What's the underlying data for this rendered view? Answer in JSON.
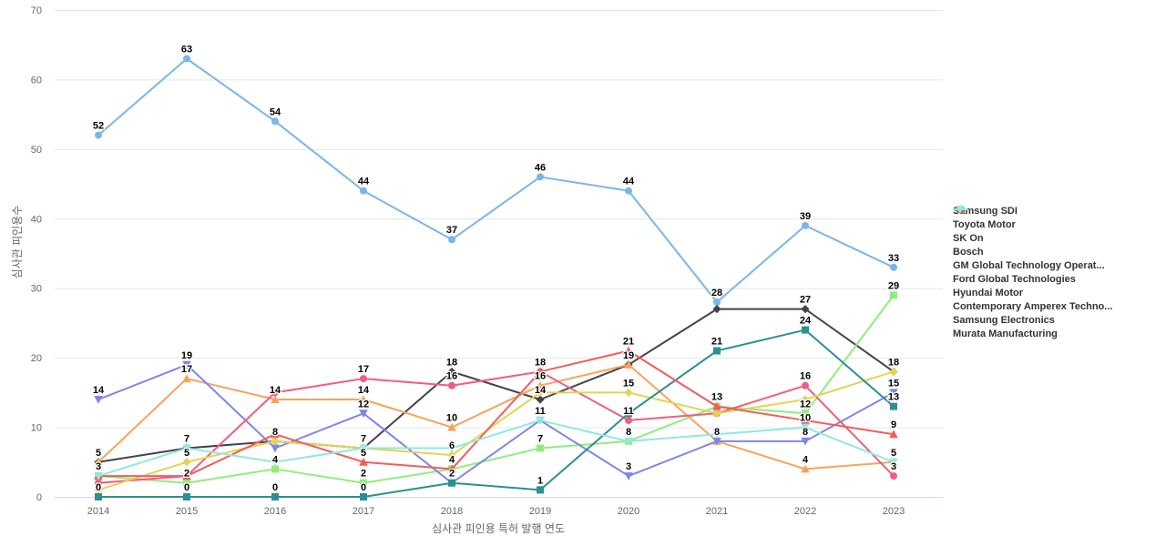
{
  "chart": {
    "theme": {
      "background": "#ffffff",
      "grid_color": "#e6e6e6",
      "axis_line_color": "#ccd6eb",
      "tick_label_color": "#666666",
      "axis_title_color": "#666666",
      "legend_text_color": "#333333",
      "data_label_color": "#000000"
    }
  },
  "chart_data": {
    "type": "line",
    "title": "",
    "xlabel": "심사관 피인용 특허 발행 연도",
    "ylabel": "심사관 피인용수",
    "x": [
      2014,
      2015,
      2016,
      2017,
      2018,
      2019,
      2020,
      2021,
      2022,
      2023
    ],
    "ylim": [
      0,
      70
    ],
    "y_ticks": [
      0,
      10,
      20,
      30,
      40,
      50,
      60,
      70
    ],
    "grid": true,
    "legend_position": "right",
    "series": [
      {
        "name": "Samsung SDI",
        "color": "#7cb5ec",
        "symbol": "circle",
        "values": [
          52,
          63,
          54,
          44,
          37,
          46,
          44,
          28,
          39,
          33
        ],
        "labels_shown": [
          0,
          1,
          2,
          3,
          4,
          5,
          6,
          7,
          8,
          9
        ]
      },
      {
        "name": "Toyota Motor",
        "color": "#434348",
        "symbol": "diamond",
        "values": [
          5,
          7,
          8,
          7,
          18,
          14,
          19,
          27,
          27,
          18
        ],
        "labels_shown": [
          0,
          1,
          3,
          4,
          5,
          8
        ]
      },
      {
        "name": "SK On",
        "color": "#90ed7d",
        "symbol": "square",
        "values": [
          3,
          2,
          4,
          2,
          4,
          7,
          8,
          13,
          12,
          29
        ],
        "labels_shown": [
          0,
          1,
          2,
          3,
          4,
          5,
          6,
          7,
          8,
          9
        ]
      },
      {
        "name": "Bosch",
        "color": "#f7a35c",
        "symbol": "triangle",
        "values": [
          5,
          17,
          14,
          14,
          10,
          16,
          19,
          8,
          4,
          5
        ],
        "labels_shown": [
          1,
          2,
          3,
          4,
          5,
          6,
          8
        ]
      },
      {
        "name": "GM Global Technology Operat...",
        "color": "#8085e9",
        "symbol": "triangle-down",
        "values": [
          14,
          19,
          7,
          12,
          2,
          11,
          3,
          8,
          8,
          15
        ],
        "labels_shown": [
          0,
          1,
          3,
          4,
          6,
          7,
          8,
          9
        ]
      },
      {
        "name": "Ford Global Technologies",
        "color": "#f15c80",
        "symbol": "circle",
        "values": [
          2,
          3,
          15,
          17,
          16,
          18,
          11,
          12,
          16,
          3
        ],
        "labels_shown": [
          3,
          4,
          6,
          8,
          9
        ]
      },
      {
        "name": "Hyundai Motor",
        "color": "#e4d354",
        "symbol": "diamond",
        "values": [
          1,
          5,
          8,
          7,
          6,
          15,
          15,
          12,
          14,
          18
        ],
        "labels_shown": [
          1,
          2,
          4,
          6,
          9
        ]
      },
      {
        "name": "Contemporary Amperex Techno...",
        "color": "#2b908f",
        "symbol": "square",
        "values": [
          0,
          0,
          0,
          0,
          2,
          1,
          12,
          21,
          24,
          13
        ],
        "labels_shown": [
          0,
          1,
          2,
          3,
          5,
          7,
          8,
          9
        ]
      },
      {
        "name": "Samsung Electronics",
        "color": "#f45b5b",
        "symbol": "triangle",
        "values": [
          3,
          3,
          9,
          5,
          4,
          18,
          21,
          13,
          11,
          9
        ],
        "labels_shown": [
          3,
          5,
          6,
          9
        ]
      },
      {
        "name": "Murata Manufacturing",
        "color": "#91e8e1",
        "symbol": "triangle-down",
        "values": [
          3,
          7,
          5,
          7,
          7,
          11,
          8,
          9,
          10,
          5
        ],
        "labels_shown": [
          5,
          8,
          9
        ]
      }
    ]
  }
}
